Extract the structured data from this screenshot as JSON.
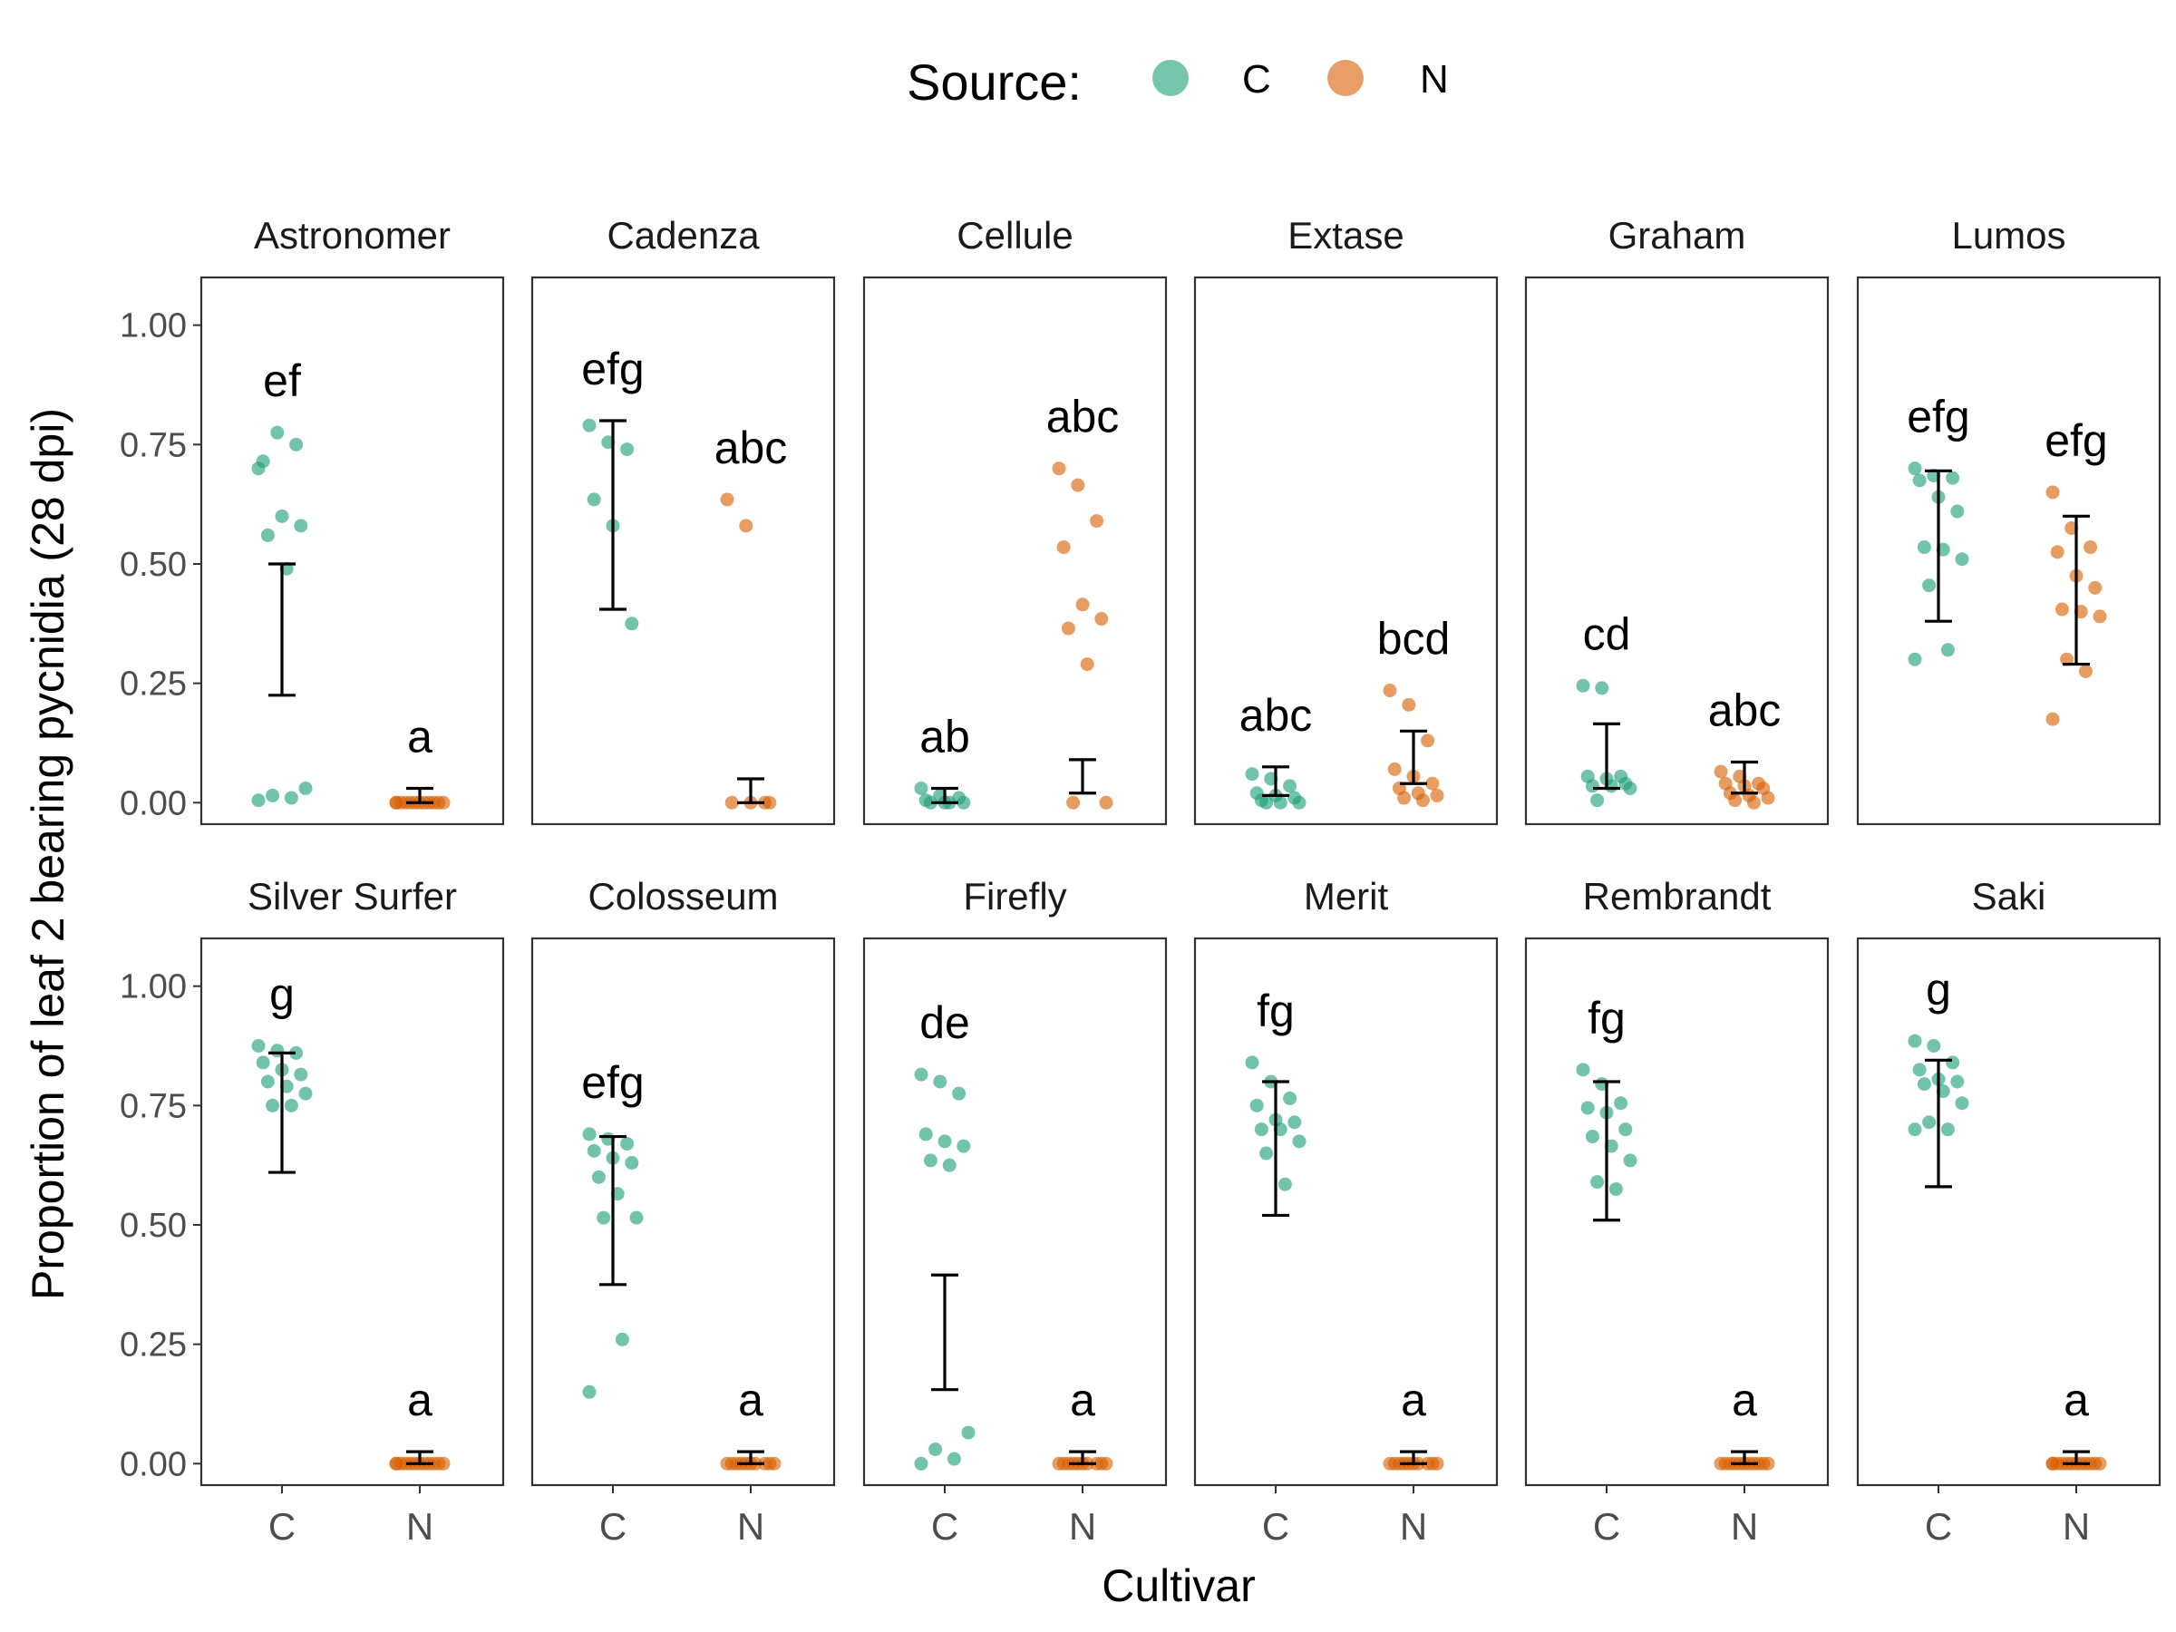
{
  "chart_data": {
    "type": "scatter",
    "ylabel": "Proportion of leaf 2 bearing pycnidia (28 dpi)",
    "xlabel": "Cultivar",
    "categories": [
      "C",
      "N"
    ],
    "ylim": [
      -0.045,
      1.1
    ],
    "yticks": [
      0,
      0.25,
      0.5,
      0.75,
      1
    ],
    "ytick_labels": [
      "0.00",
      "0.25",
      "0.50",
      "0.75",
      "1.00"
    ],
    "legend": {
      "title": "Source:",
      "position": "top",
      "entries": [
        {
          "label": "C",
          "color": "#1b9e77"
        },
        {
          "label": "N",
          "color": "#d95f02"
        }
      ]
    },
    "panels": [
      {
        "name": "Astronomer",
        "C": {
          "letter": "ef",
          "points": [
            0.7,
            0.775,
            0.75,
            0.715,
            0.6,
            0.58,
            0.56,
            0.49,
            0.03,
            0.015,
            0.01,
            0.005
          ],
          "ci": [
            0.225,
            0.5
          ]
        },
        "N": {
          "letter": "a",
          "points": [
            0,
            0,
            0,
            0,
            0,
            0,
            0,
            0,
            0,
            0,
            0,
            0
          ],
          "ci": [
            0.0,
            0.03
          ]
        }
      },
      {
        "name": "Cadenza",
        "C": {
          "letter": "efg",
          "points": [
            0.79,
            0.755,
            0.74,
            0.635,
            0.58,
            0.375
          ],
          "ci": [
            0.405,
            0.8
          ]
        },
        "N": {
          "letter": "abc",
          "points": [
            0.635,
            0.58,
            0,
            0,
            0,
            0
          ],
          "ci": [
            0.0,
            0.05
          ]
        }
      },
      {
        "name": "Cellule",
        "C": {
          "letter": "ab",
          "points": [
            0.03,
            0.015,
            0.01,
            0.005,
            0,
            0,
            0,
            0
          ],
          "ci": [
            0.0,
            0.03
          ]
        },
        "N": {
          "letter": "abc",
          "points": [
            0.7,
            0.665,
            0.59,
            0.535,
            0.415,
            0.385,
            0.365,
            0.29,
            0,
            0
          ],
          "ci": [
            0.02,
            0.09
          ]
        }
      },
      {
        "name": "Extase",
        "C": {
          "letter": "abc",
          "points": [
            0.06,
            0.05,
            0.035,
            0.02,
            0.015,
            0.01,
            0.005,
            0,
            0,
            0
          ],
          "ci": [
            0.015,
            0.075
          ]
        },
        "N": {
          "letter": "bcd",
          "points": [
            0.235,
            0.205,
            0.13,
            0.07,
            0.055,
            0.04,
            0.03,
            0.02,
            0.015,
            0.01,
            0.005
          ],
          "ci": [
            0.04,
            0.15
          ]
        }
      },
      {
        "name": "Graham",
        "C": {
          "letter": "cd",
          "points": [
            0.245,
            0.24,
            0.055,
            0.055,
            0.05,
            0.04,
            0.035,
            0.035,
            0.03,
            0.005
          ],
          "ci": [
            0.03,
            0.165
          ]
        },
        "N": {
          "letter": "abc",
          "points": [
            0.065,
            0.055,
            0.04,
            0.04,
            0.035,
            0.03,
            0.02,
            0.015,
            0.01,
            0.005,
            0
          ],
          "ci": [
            0.02,
            0.085
          ]
        }
      },
      {
        "name": "Lumos",
        "C": {
          "letter": "efg",
          "points": [
            0.7,
            0.685,
            0.68,
            0.675,
            0.64,
            0.61,
            0.535,
            0.53,
            0.51,
            0.455,
            0.32,
            0.3
          ],
          "ci": [
            0.38,
            0.695
          ]
        },
        "N": {
          "letter": "efg",
          "points": [
            0.65,
            0.575,
            0.535,
            0.525,
            0.475,
            0.45,
            0.405,
            0.4,
            0.39,
            0.3,
            0.275,
            0.175
          ],
          "ci": [
            0.29,
            0.6
          ]
        }
      },
      {
        "name": "Silver Surfer",
        "C": {
          "letter": "g",
          "points": [
            0.875,
            0.865,
            0.86,
            0.84,
            0.825,
            0.815,
            0.8,
            0.79,
            0.775,
            0.75,
            0.75
          ],
          "ci": [
            0.61,
            0.86
          ]
        },
        "N": {
          "letter": "a",
          "points": [
            0,
            0,
            0,
            0,
            0,
            0,
            0,
            0,
            0,
            0,
            0,
            0
          ],
          "ci": [
            0.0,
            0.025
          ]
        }
      },
      {
        "name": "Colosseum",
        "C": {
          "letter": "efg",
          "points": [
            0.69,
            0.68,
            0.67,
            0.655,
            0.64,
            0.63,
            0.6,
            0.565,
            0.515,
            0.515,
            0.26,
            0.15
          ],
          "ci": [
            0.375,
            0.685
          ]
        },
        "N": {
          "letter": "a",
          "points": [
            0,
            0,
            0,
            0,
            0,
            0,
            0,
            0,
            0,
            0
          ],
          "ci": [
            0.0,
            0.025
          ]
        }
      },
      {
        "name": "Firefly",
        "C": {
          "letter": "de",
          "points": [
            0.815,
            0.8,
            0.775,
            0.69,
            0.675,
            0.665,
            0.635,
            0.625,
            0.065,
            0.03,
            0.01,
            0.0
          ],
          "ci": [
            0.155,
            0.395
          ]
        },
        "N": {
          "letter": "a",
          "points": [
            0,
            0,
            0,
            0,
            0,
            0,
            0,
            0,
            0,
            0
          ],
          "ci": [
            0.0,
            0.025
          ]
        }
      },
      {
        "name": "Merit",
        "C": {
          "letter": "fg",
          "points": [
            0.84,
            0.8,
            0.765,
            0.75,
            0.72,
            0.715,
            0.7,
            0.7,
            0.675,
            0.65,
            0.585
          ],
          "ci": [
            0.52,
            0.8
          ]
        },
        "N": {
          "letter": "a",
          "points": [
            0,
            0,
            0,
            0,
            0,
            0,
            0,
            0,
            0,
            0
          ],
          "ci": [
            0.0,
            0.025
          ]
        }
      },
      {
        "name": "Rembrandt",
        "C": {
          "letter": "fg",
          "points": [
            0.825,
            0.795,
            0.755,
            0.745,
            0.735,
            0.7,
            0.685,
            0.665,
            0.635,
            0.59,
            0.575
          ],
          "ci": [
            0.51,
            0.8
          ]
        },
        "N": {
          "letter": "a",
          "points": [
            0,
            0,
            0,
            0,
            0,
            0,
            0,
            0,
            0,
            0,
            0
          ],
          "ci": [
            0.0,
            0.025
          ]
        }
      },
      {
        "name": "Saki",
        "C": {
          "letter": "g",
          "points": [
            0.885,
            0.875,
            0.84,
            0.825,
            0.805,
            0.8,
            0.795,
            0.78,
            0.755,
            0.715,
            0.7,
            0.7
          ],
          "ci": [
            0.58,
            0.845
          ]
        },
        "N": {
          "letter": "a",
          "points": [
            0,
            0,
            0,
            0,
            0,
            0,
            0,
            0,
            0,
            0,
            0,
            0
          ],
          "ci": [
            0.0,
            0.025
          ]
        }
      }
    ]
  }
}
